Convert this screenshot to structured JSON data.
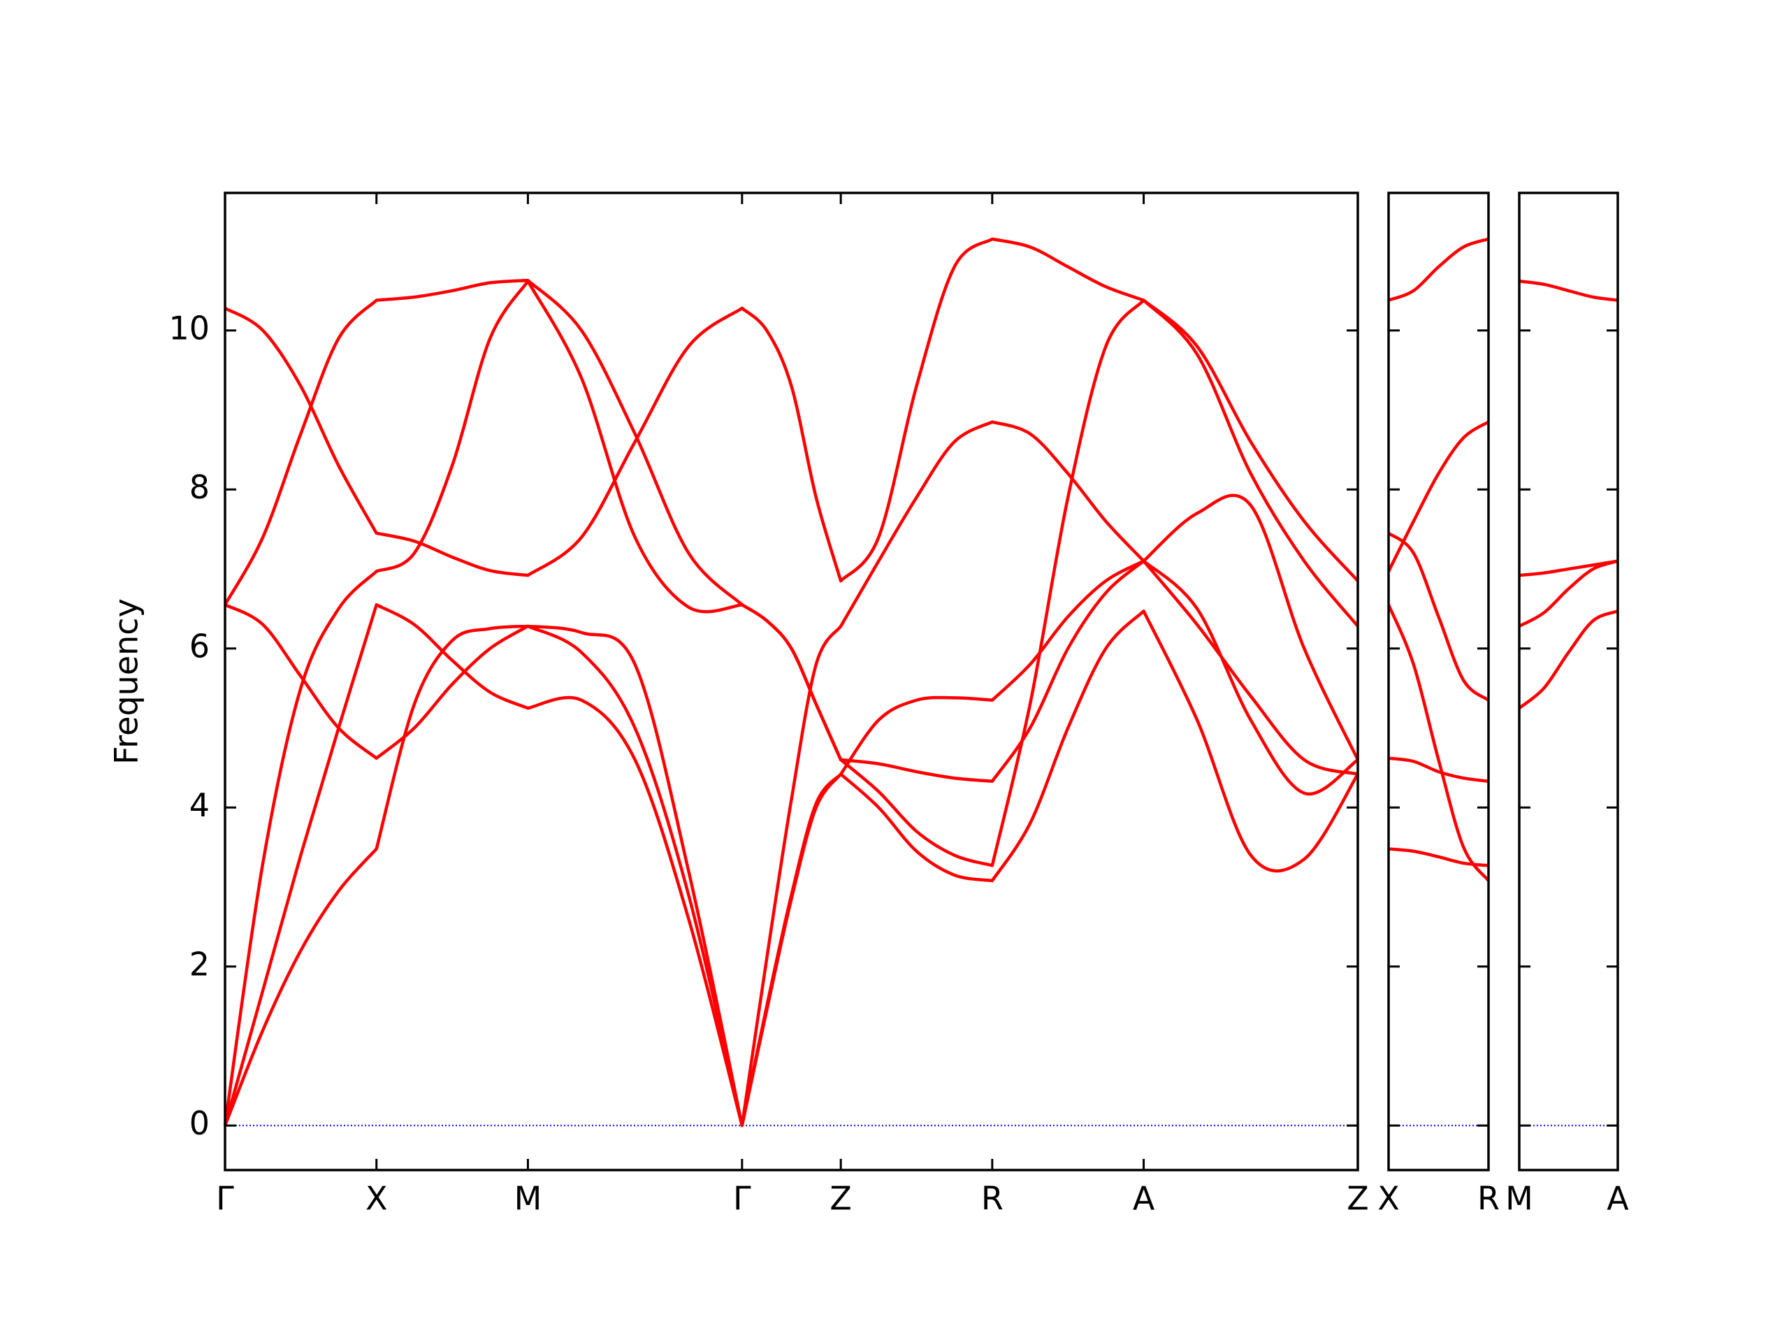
{
  "chart_data": [
    {
      "type": "line",
      "ylabel": "Frequency",
      "ytick_labels": true,
      "zero_line_color": "#0000ff",
      "xlim": [
        0,
        7.48
      ],
      "ylim": [
        -0.56,
        11.73
      ],
      "xticks": [
        {
          "value": 0,
          "label": "Γ"
        },
        {
          "value": 1,
          "label": "X"
        },
        {
          "value": 2,
          "label": "M"
        },
        {
          "value": 3.414,
          "label": "Γ"
        },
        {
          "value": 4.066,
          "label": "Z"
        },
        {
          "value": 5.066,
          "label": "R"
        },
        {
          "value": 6.066,
          "label": "A"
        },
        {
          "value": 7.48,
          "label": "Z"
        }
      ],
      "yticks": [
        0,
        2,
        4,
        6,
        8,
        10
      ],
      "x": [
        0,
        0.25,
        0.5,
        0.75,
        1,
        1.25,
        1.5,
        1.75,
        2,
        2.354,
        2.707,
        3.061,
        3.414,
        3.577,
        3.74,
        3.903,
        4.066,
        4.316,
        4.566,
        4.816,
        5.066,
        5.316,
        5.566,
        5.816,
        6.066,
        6.419,
        6.773,
        7.126,
        7.48
      ],
      "series": [
        {
          "color": "#ff0000",
          "values": [
            10.28,
            10.0,
            9.3,
            8.3,
            7.45,
            7.35,
            7.15,
            6.98,
            6.92,
            7.4,
            8.6,
            9.8,
            10.28,
            10.0,
            9.3,
            7.9,
            6.85,
            7.4,
            9.3,
            10.8,
            11.15,
            11.05,
            10.8,
            10.55,
            10.38,
            9.8,
            8.6,
            7.6,
            6.85
          ]
        },
        {
          "color": "#ff0000",
          "values": [
            6.55,
            7.4,
            8.7,
            9.9,
            10.38,
            10.42,
            10.5,
            10.6,
            10.63,
            10.0,
            8.7,
            7.2,
            6.55,
            6.35,
            6.0,
            5.3,
            4.6,
            4.55,
            4.45,
            4.37,
            4.33,
            5.0,
            6.0,
            6.7,
            7.1,
            6.5,
            5.1,
            4.18,
            4.6
          ]
        },
        {
          "color": "#ff0000",
          "values": [
            6.55,
            6.3,
            5.65,
            5.0,
            4.62,
            5.0,
            5.55,
            6.0,
            6.28,
            6.2,
            5.8,
            3.2,
            0,
            2.1,
            4.1,
            5.8,
            6.28,
            7.1,
            7.9,
            8.6,
            8.85,
            8.7,
            8.2,
            7.6,
            7.1,
            7.7,
            7.8,
            6.0,
            4.6
          ]
        },
        {
          "color": "#ff0000",
          "values": [
            0,
            3.3,
            5.5,
            6.5,
            6.97,
            7.2,
            8.3,
            9.9,
            10.62,
            9.4,
            7.4,
            6.52,
            6.55,
            6.35,
            6.0,
            5.3,
            4.6,
            4.2,
            3.7,
            3.4,
            3.27,
            5.3,
            7.9,
            9.8,
            10.38,
            9.7,
            8.2,
            7.1,
            6.28
          ]
        },
        {
          "color": "#ff0000",
          "values": [
            0,
            1.7,
            3.4,
            5.0,
            6.55,
            6.3,
            5.85,
            5.45,
            5.25,
            5.35,
            4.6,
            2.6,
            0,
            1.5,
            2.9,
            4.05,
            4.42,
            5.1,
            5.35,
            5.38,
            5.35,
            5.8,
            6.4,
            6.85,
            7.1,
            6.3,
            5.4,
            4.6,
            4.42
          ]
        },
        {
          "color": "#ff0000",
          "values": [
            0,
            1.2,
            2.2,
            2.95,
            3.48,
            5.3,
            6.1,
            6.25,
            6.28,
            5.95,
            5.0,
            2.9,
            0,
            1.45,
            2.85,
            4.0,
            4.42,
            4.0,
            3.45,
            3.15,
            3.08,
            3.8,
            5.0,
            6.0,
            6.47,
            5.1,
            3.4,
            3.35,
            4.42
          ]
        }
      ]
    },
    {
      "type": "line",
      "ytick_labels": false,
      "zero_line_color": "#0000ff",
      "xlim": [
        0,
        0.66
      ],
      "ylim": [
        -0.56,
        11.73
      ],
      "xticks": [
        {
          "value": 0,
          "label": "X"
        },
        {
          "value": 0.66,
          "label": "R"
        }
      ],
      "yticks": [
        0,
        2,
        4,
        6,
        8,
        10
      ],
      "x": [
        0,
        0.165,
        0.33,
        0.495,
        0.66
      ],
      "series": [
        {
          "color": "#ff0000",
          "values": [
            10.38,
            10.5,
            10.8,
            11.05,
            11.15
          ]
        },
        {
          "color": "#ff0000",
          "values": [
            6.97,
            7.6,
            8.2,
            8.65,
            8.85
          ]
        },
        {
          "color": "#ff0000",
          "values": [
            7.45,
            7.2,
            6.4,
            5.6,
            5.35
          ]
        },
        {
          "color": "#ff0000",
          "values": [
            6.55,
            5.8,
            4.6,
            3.5,
            3.08
          ]
        },
        {
          "color": "#ff0000",
          "values": [
            4.62,
            4.58,
            4.45,
            4.37,
            4.33
          ]
        },
        {
          "color": "#ff0000",
          "values": [
            3.48,
            3.45,
            3.38,
            3.3,
            3.27
          ]
        }
      ]
    },
    {
      "type": "line",
      "ytick_labels": false,
      "zero_line_color": "#0000ff",
      "xlim": [
        0,
        0.65
      ],
      "ylim": [
        -0.56,
        11.73
      ],
      "xticks": [
        {
          "value": 0,
          "label": "M"
        },
        {
          "value": 0.65,
          "label": "A"
        }
      ],
      "yticks": [
        0,
        2,
        4,
        6,
        8,
        10
      ],
      "x": [
        0,
        0.1625,
        0.325,
        0.4875,
        0.65
      ],
      "series": [
        {
          "color": "#ff0000",
          "values": [
            10.62,
            10.58,
            10.5,
            10.42,
            10.38
          ]
        },
        {
          "color": "#ff0000",
          "values": [
            6.92,
            6.95,
            7.0,
            7.05,
            7.1
          ]
        },
        {
          "color": "#ff0000",
          "values": [
            6.28,
            6.45,
            6.75,
            7.0,
            7.1
          ]
        },
        {
          "color": "#ff0000",
          "values": [
            5.25,
            5.5,
            5.95,
            6.35,
            6.47
          ]
        }
      ]
    }
  ]
}
